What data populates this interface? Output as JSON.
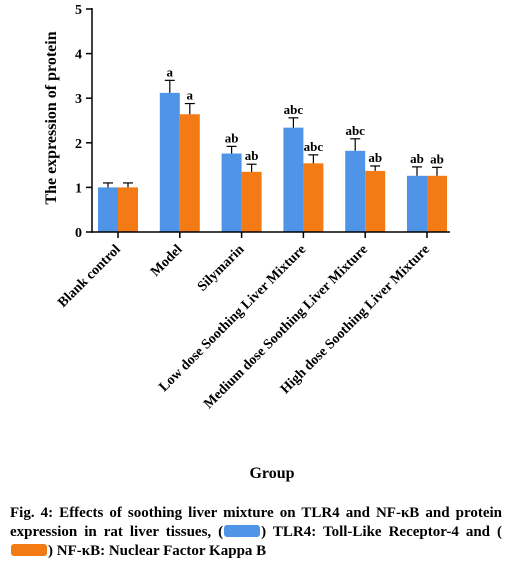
{
  "chart_data": {
    "type": "bar",
    "xlabel": "Group",
    "ylabel": "The expression of protein",
    "ylim": [
      0,
      5
    ],
    "yticks": [
      "0",
      "1",
      "2",
      "3",
      "4",
      "5"
    ],
    "categories": [
      "Blank control",
      "Model",
      "Silymarin",
      "Low dose Soothing Liver Mixture",
      "Medium dose Soothing Liver Mixture",
      "High dose Soothing Liver Mixture"
    ],
    "series": [
      {
        "name": "TLR4",
        "color": "#4f94e6",
        "values": [
          1.0,
          3.12,
          1.76,
          2.34,
          1.82,
          1.26
        ],
        "errors": [
          0.1,
          0.28,
          0.16,
          0.22,
          0.27,
          0.2
        ],
        "letters": [
          "",
          "a",
          "ab",
          "abc",
          "abc",
          "ab"
        ]
      },
      {
        "name": "NF-κB",
        "color": "#f37a14",
        "values": [
          1.0,
          2.64,
          1.35,
          1.54,
          1.37,
          1.26
        ],
        "errors": [
          0.1,
          0.24,
          0.17,
          0.19,
          0.11,
          0.19
        ],
        "letters": [
          "",
          "a",
          "ab",
          "abc",
          "ab",
          "ab"
        ]
      }
    ],
    "grid": false,
    "legend": "none"
  },
  "caption": {
    "part1": "Fig. 4: Effects of soothing liver mixture on TLR4 and NF-κB and protein expression in rat liver tissues, (",
    "part2": ") TLR4: Toll-Like Receptor-4 and (",
    "part3": ") NF-κB: Nuclear Factor Kappa B"
  }
}
